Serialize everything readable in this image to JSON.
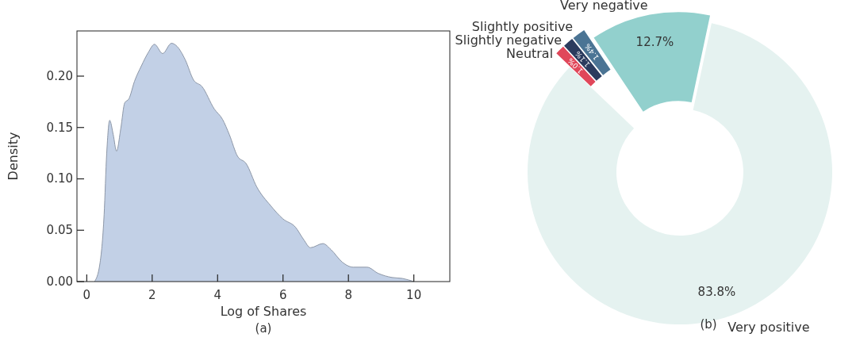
{
  "chart_data": [
    {
      "type": "area",
      "xlabel": "Log of Shares",
      "ylabel": "Density",
      "color": "#c2d0e6",
      "x": [
        0.24,
        0.4,
        0.53,
        0.61,
        0.7,
        0.81,
        0.91,
        1.04,
        1.16,
        1.29,
        1.46,
        1.67,
        1.88,
        2.07,
        2.32,
        2.59,
        2.76,
        3.01,
        3.27,
        3.52,
        3.9,
        4.15,
        4.36,
        4.61,
        4.87,
        5.2,
        5.62,
        6.0,
        6.38,
        6.63,
        6.84,
        7.22,
        7.47,
        7.81,
        8.15,
        8.57,
        8.91,
        9.33,
        9.66,
        10.0
      ],
      "values": [
        0,
        0.017,
        0.065,
        0.125,
        0.157,
        0.143,
        0.127,
        0.149,
        0.174,
        0.178,
        0.195,
        0.21,
        0.223,
        0.231,
        0.222,
        0.232,
        0.229,
        0.216,
        0.196,
        0.19,
        0.168,
        0.158,
        0.143,
        0.122,
        0.115,
        0.092,
        0.074,
        0.061,
        0.053,
        0.041,
        0.033,
        0.037,
        0.031,
        0.019,
        0.014,
        0.014,
        0.008,
        0.004,
        0.003,
        0
      ],
      "xlim": [
        -0.3,
        11.1
      ],
      "xticks": [
        0,
        2,
        4,
        6,
        8,
        10
      ],
      "ylim": [
        0,
        0.244
      ],
      "yticks": [
        {
          "value": 0,
          "label": "0.00"
        },
        {
          "value": 0.05,
          "label": "0.05"
        },
        {
          "value": 0.1,
          "label": "0.10"
        },
        {
          "value": 0.15,
          "label": "0.15"
        },
        {
          "value": 0.2,
          "label": "0.20"
        }
      ],
      "annotations": [
        "(a)"
      ]
    },
    {
      "type": "donut",
      "categories": [
        "Very positive",
        "Neutral",
        "Slightly negative",
        "Slightly positive",
        "Very negative"
      ],
      "values": [
        83.8,
        1.0,
        1.1,
        1.4,
        12.7
      ],
      "colors": [
        "#e5f2f0",
        "#e0475a",
        "#2b3b5e",
        "#4b7494",
        "#92d0cd"
      ],
      "value_labels": [
        "83.8%",
        "1.0%",
        "1.1%",
        "1.4%",
        "12.7%"
      ],
      "annotations": [
        "(b)"
      ]
    }
  ]
}
